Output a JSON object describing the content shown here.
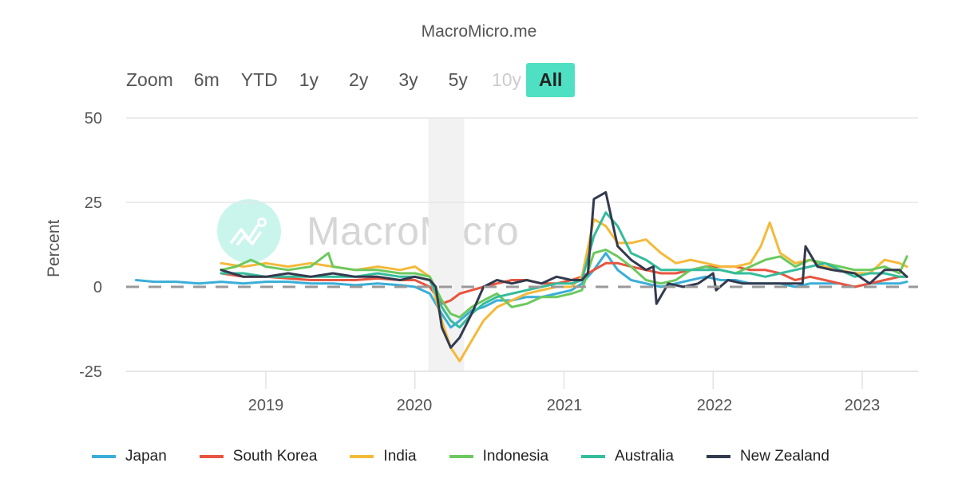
{
  "header": {
    "title": "MacroMicro.me"
  },
  "range_selector": {
    "label": "Zoom",
    "buttons": [
      {
        "label": "6m",
        "state": "normal"
      },
      {
        "label": "YTD",
        "state": "normal"
      },
      {
        "label": "1y",
        "state": "normal"
      },
      {
        "label": "2y",
        "state": "normal"
      },
      {
        "label": "3y",
        "state": "normal"
      },
      {
        "label": "5y",
        "state": "normal"
      },
      {
        "label": "10y",
        "state": "disabled"
      },
      {
        "label": "All",
        "state": "active"
      }
    ]
  },
  "watermark": {
    "text": "MacroMicro"
  },
  "colors": {
    "accent": "#4fe0c3",
    "grid": "#e6e6e6",
    "zero_line": "#999999",
    "recession_band": "#f2f2f2"
  },
  "chart_data": {
    "type": "line",
    "title": "MacroMicro.me",
    "xlabel": "",
    "ylabel": "Percent",
    "ylim": [
      -25,
      50
    ],
    "yticks": [
      50,
      25,
      0,
      -25
    ],
    "xticks": [
      "2019",
      "2020",
      "2021",
      "2022",
      "2023"
    ],
    "xrange": [
      2018.13,
      2023.33
    ],
    "grid": true,
    "legend_position": "bottom",
    "shaded_region": {
      "from": 2020.09,
      "to": 2020.33,
      "label": "recession"
    },
    "reference_line": {
      "y": 0,
      "style": "dashed"
    },
    "series": [
      {
        "name": "Japan",
        "color": "#3aaed8",
        "x": [
          2018.13,
          2018.25,
          2018.4,
          2018.55,
          2018.7,
          2018.85,
          2019.0,
          2019.15,
          2019.3,
          2019.45,
          2019.6,
          2019.75,
          2019.9,
          2020.0,
          2020.1,
          2020.18,
          2020.24,
          2020.3,
          2020.38,
          2020.46,
          2020.55,
          2020.65,
          2020.75,
          2020.85,
          2020.95,
          2021.05,
          2021.12,
          2021.2,
          2021.28,
          2021.36,
          2021.45,
          2021.55,
          2021.65,
          2021.75,
          2021.85,
          2021.95,
          2022.05,
          2022.15,
          2022.25,
          2022.35,
          2022.45,
          2022.55,
          2022.65,
          2022.75,
          2022.85,
          2022.95,
          2023.05,
          2023.15,
          2023.25,
          2023.3
        ],
        "values": [
          2,
          1.5,
          1.5,
          1,
          1.5,
          1,
          1.5,
          1.5,
          1,
          1,
          0.5,
          1,
          0.5,
          0,
          -2,
          -8,
          -12,
          -10,
          -7,
          -6,
          -4,
          -4,
          -3,
          -3,
          -2,
          -1,
          1,
          5,
          10,
          5,
          2,
          1,
          0,
          1,
          2,
          3,
          2,
          2,
          1,
          1,
          1,
          0,
          1,
          1,
          1,
          0,
          1,
          1,
          1,
          1.5
        ]
      },
      {
        "name": "South Korea",
        "color": "#e8553f",
        "x": [
          2018.7,
          2018.85,
          2019.0,
          2019.15,
          2019.3,
          2019.45,
          2019.6,
          2019.75,
          2019.9,
          2020.0,
          2020.1,
          2020.18,
          2020.24,
          2020.3,
          2020.38,
          2020.46,
          2020.55,
          2020.65,
          2020.75,
          2020.85,
          2020.95,
          2021.05,
          2021.12,
          2021.2,
          2021.28,
          2021.36,
          2021.45,
          2021.55,
          2021.65,
          2021.75,
          2021.85,
          2021.95,
          2022.05,
          2022.15,
          2022.25,
          2022.35,
          2022.45,
          2022.55,
          2022.65,
          2022.75,
          2022.85,
          2022.95,
          2023.05,
          2023.15,
          2023.25,
          2023.3
        ],
        "values": [
          4,
          3,
          3,
          2.5,
          2,
          2,
          2,
          2.5,
          2,
          2,
          0,
          -5,
          -4,
          -2,
          -1,
          0,
          1,
          2,
          2,
          1,
          1,
          2,
          3,
          5,
          7,
          7,
          6,
          5,
          4,
          4,
          5,
          6,
          6,
          6,
          5,
          5,
          4,
          2,
          3,
          2,
          1,
          0,
          1,
          2,
          3,
          3
        ]
      },
      {
        "name": "India",
        "color": "#f5b93a",
        "x": [
          2018.7,
          2018.85,
          2019.0,
          2019.15,
          2019.3,
          2019.45,
          2019.6,
          2019.75,
          2019.9,
          2020.0,
          2020.1,
          2020.18,
          2020.24,
          2020.3,
          2020.38,
          2020.46,
          2020.55,
          2020.65,
          2020.75,
          2020.85,
          2020.95,
          2021.05,
          2021.12,
          2021.2,
          2021.28,
          2021.36,
          2021.45,
          2021.55,
          2021.65,
          2021.75,
          2021.85,
          2021.95,
          2022.05,
          2022.15,
          2022.25,
          2022.32,
          2022.38,
          2022.45,
          2022.55,
          2022.65,
          2022.75,
          2022.85,
          2022.95,
          2023.05,
          2023.15,
          2023.25,
          2023.3
        ],
        "values": [
          7,
          6,
          7,
          6,
          7,
          6,
          5,
          6,
          5,
          6,
          3,
          -10,
          -18,
          -22,
          -16,
          -10,
          -6,
          -4,
          -2,
          -1,
          0,
          0,
          3,
          20,
          18,
          13,
          13,
          14,
          10,
          7,
          8,
          7,
          6,
          6,
          7,
          12,
          19,
          10,
          7,
          8,
          6,
          5,
          4,
          4,
          8,
          7,
          6
        ]
      },
      {
        "name": "Indonesia",
        "color": "#6cc95e",
        "x": [
          2018.7,
          2018.8,
          2018.9,
          2019.0,
          2019.15,
          2019.3,
          2019.42,
          2019.45,
          2019.6,
          2019.75,
          2019.9,
          2020.0,
          2020.1,
          2020.18,
          2020.24,
          2020.3,
          2020.38,
          2020.46,
          2020.55,
          2020.65,
          2020.75,
          2020.85,
          2020.95,
          2021.05,
          2021.12,
          2021.2,
          2021.28,
          2021.36,
          2021.45,
          2021.55,
          2021.65,
          2021.75,
          2021.85,
          2021.95,
          2022.05,
          2022.15,
          2022.25,
          2022.35,
          2022.45,
          2022.55,
          2022.65,
          2022.75,
          2022.85,
          2022.95,
          2023.05,
          2023.15,
          2023.25,
          2023.3
        ],
        "values": [
          5,
          6,
          8,
          6,
          5,
          6,
          10,
          6,
          5,
          5,
          4,
          4,
          3,
          -4,
          -8,
          -9,
          -6,
          -4,
          -2,
          -6,
          -5,
          -3,
          -3,
          -2,
          -1,
          10,
          11,
          9,
          6,
          2,
          1,
          2,
          5,
          6,
          5,
          4,
          6,
          8,
          9,
          6,
          8,
          7,
          6,
          5,
          5,
          6,
          4,
          9
        ]
      },
      {
        "name": "Australia",
        "color": "#35bc9b",
        "x": [
          2018.7,
          2018.85,
          2019.0,
          2019.15,
          2019.3,
          2019.45,
          2019.6,
          2019.75,
          2019.9,
          2020.0,
          2020.1,
          2020.18,
          2020.24,
          2020.3,
          2020.38,
          2020.46,
          2020.55,
          2020.65,
          2020.75,
          2020.85,
          2020.95,
          2021.05,
          2021.12,
          2021.2,
          2021.28,
          2021.36,
          2021.45,
          2021.55,
          2021.65,
          2021.75,
          2021.85,
          2021.95,
          2022.05,
          2022.15,
          2022.25,
          2022.35,
          2022.45,
          2022.55,
          2022.65,
          2022.75,
          2022.85,
          2022.95,
          2023.05,
          2023.15,
          2023.25,
          2023.3
        ],
        "values": [
          4,
          4,
          3,
          3,
          3,
          3,
          3,
          4,
          3,
          3,
          2,
          -6,
          -10,
          -12,
          -8,
          -5,
          -3,
          -2,
          -1,
          0,
          1,
          1,
          2,
          15,
          22,
          18,
          10,
          8,
          5,
          5,
          5,
          5,
          5,
          4,
          4,
          3,
          4,
          5,
          6,
          7,
          5,
          3,
          4,
          4,
          3,
          3
        ]
      },
      {
        "name": "New Zealand",
        "color": "#343a4e",
        "x": [
          2018.7,
          2018.85,
          2019.0,
          2019.15,
          2019.3,
          2019.45,
          2019.6,
          2019.75,
          2019.9,
          2020.0,
          2020.1,
          2020.14,
          2020.18,
          2020.24,
          2020.3,
          2020.38,
          2020.46,
          2020.55,
          2020.65,
          2020.75,
          2020.85,
          2020.95,
          2021.05,
          2021.12,
          2021.16,
          2021.2,
          2021.28,
          2021.36,
          2021.45,
          2021.55,
          2021.6,
          2021.62,
          2021.7,
          2021.8,
          2021.9,
          2022.0,
          2022.02,
          2022.1,
          2022.2,
          2022.3,
          2022.4,
          2022.5,
          2022.6,
          2022.62,
          2022.7,
          2022.8,
          2022.95,
          2023.05,
          2023.15,
          2023.25,
          2023.3
        ],
        "values": [
          5,
          3,
          3,
          4,
          3,
          4,
          3,
          3,
          2,
          3,
          2,
          0,
          -12,
          -18,
          -15,
          -8,
          0,
          2,
          1,
          2,
          1,
          3,
          2,
          2,
          4,
          26,
          28,
          12,
          8,
          5,
          6,
          -5,
          1,
          0,
          1,
          4,
          -1,
          2,
          1,
          1,
          1,
          1,
          1,
          12,
          6,
          5,
          4,
          1,
          5,
          5,
          3
        ]
      }
    ]
  },
  "axes": {
    "y_title": "Percent",
    "y_tick_labels": [
      "50",
      "25",
      "0",
      "-25"
    ],
    "x_tick_labels": [
      "2019",
      "2020",
      "2021",
      "2022",
      "2023"
    ]
  },
  "legend": [
    {
      "label": "Japan",
      "color": "#3aaed8"
    },
    {
      "label": "South Korea",
      "color": "#e8553f"
    },
    {
      "label": "India",
      "color": "#f5b93a"
    },
    {
      "label": "Indonesia",
      "color": "#6cc95e"
    },
    {
      "label": "Australia",
      "color": "#35bc9b"
    },
    {
      "label": "New Zealand",
      "color": "#343a4e"
    }
  ]
}
